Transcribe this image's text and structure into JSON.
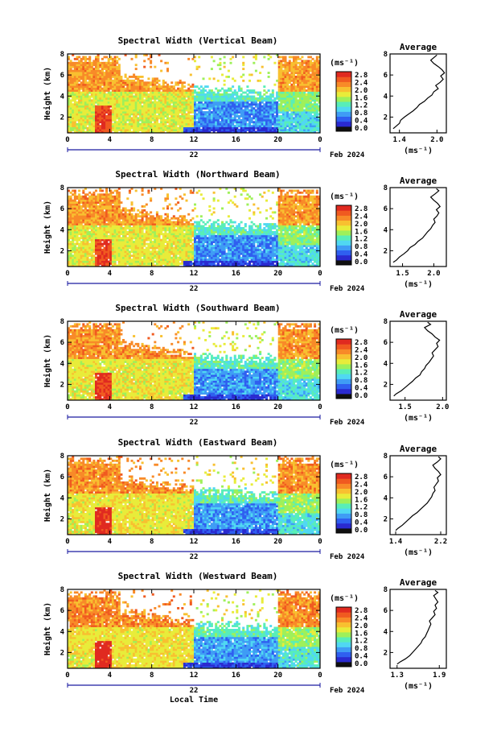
{
  "x_axis_label": "Local Time",
  "date_label": "Feb 2024",
  "day_label": "22",
  "colorbar_unit": "(ms⁻¹)",
  "colorbar_ticks": [
    "0.0",
    "0.4",
    "0.8",
    "1.2",
    "1.6",
    "2.0",
    "2.4",
    "2.8"
  ],
  "colorbar_colors": [
    "#101010",
    "#2a2ad0",
    "#2f5ff0",
    "#3f9cf5",
    "#50d8f2",
    "#58eeb8",
    "#9ef05a",
    "#e8ec3a",
    "#f8c030",
    "#f88a28",
    "#f05a20",
    "#e02a20"
  ],
  "chart_data": [
    {
      "type": "heatmap",
      "title": "Spectral Width (Vertical Beam)",
      "xlabel": "",
      "ylabel": "Height (km)",
      "x_ticks": [
        "0",
        "4",
        "8",
        "12",
        "16",
        "20",
        "0"
      ],
      "y_ticks": [
        "2",
        "4",
        "6",
        "8"
      ],
      "xlim": [
        0,
        24
      ],
      "ylim": [
        0.5,
        8.0
      ],
      "colorbar_range": [
        0.0,
        2.8
      ],
      "description_levels": {
        "low_altitude_evening": "0.4-1.0",
        "upper_layer": "2.0-2.8"
      },
      "profile": {
        "title": "Average",
        "x_ticks": [
          "1.4",
          "2.0"
        ],
        "xlim": [
          1.25,
          2.15
        ],
        "xlabel": "(ms⁻¹)",
        "y_ticks": [
          "2",
          "4",
          "6",
          "8"
        ],
        "ylim": [
          0.5,
          8.0
        ],
        "x": [
          1.3,
          1.34,
          1.4,
          1.42,
          1.48,
          1.55,
          1.62,
          1.68,
          1.72,
          1.8,
          1.85,
          1.92,
          1.95,
          2.02,
          1.98,
          2.05,
          2.1,
          2.06,
          2.12,
          2.08,
          2.02,
          1.95,
          1.9,
          1.96,
          2.0
        ],
        "y": [
          0.9,
          1.1,
          1.4,
          1.7,
          2.0,
          2.3,
          2.6,
          2.9,
          3.2,
          3.5,
          3.8,
          4.1,
          4.4,
          4.7,
          5.0,
          5.3,
          5.6,
          5.9,
          6.2,
          6.5,
          6.8,
          7.1,
          7.4,
          7.7,
          7.9
        ]
      }
    },
    {
      "type": "heatmap",
      "title": "Spectral Width (Northward Beam)",
      "xlabel": "",
      "ylabel": "Height (km)",
      "x_ticks": [
        "0",
        "4",
        "8",
        "12",
        "16",
        "20",
        "0"
      ],
      "y_ticks": [
        "2",
        "4",
        "6",
        "8"
      ],
      "xlim": [
        0,
        24
      ],
      "ylim": [
        0.5,
        8.0
      ],
      "colorbar_range": [
        0.0,
        2.8
      ],
      "profile": {
        "title": "Average",
        "x_ticks": [
          "1.5",
          "2.0"
        ],
        "xlim": [
          1.3,
          2.2
        ],
        "xlabel": "(ms⁻¹)",
        "y_ticks": [
          "2",
          "4",
          "6",
          "8"
        ],
        "ylim": [
          0.5,
          8.0
        ],
        "x": [
          1.35,
          1.4,
          1.45,
          1.52,
          1.58,
          1.62,
          1.7,
          1.75,
          1.82,
          1.86,
          1.9,
          1.95,
          1.98,
          2.02,
          2.0,
          2.05,
          2.08,
          2.04,
          2.1,
          2.06,
          2.0,
          1.95,
          2.02,
          2.08,
          2.04
        ],
        "y": [
          0.9,
          1.1,
          1.4,
          1.7,
          2.0,
          2.3,
          2.6,
          2.9,
          3.2,
          3.5,
          3.8,
          4.1,
          4.4,
          4.7,
          5.0,
          5.3,
          5.6,
          5.9,
          6.2,
          6.5,
          6.8,
          7.1,
          7.4,
          7.7,
          7.9
        ]
      }
    },
    {
      "type": "heatmap",
      "title": "Spectral Width (Southward Beam)",
      "xlabel": "",
      "ylabel": "Height (km)",
      "x_ticks": [
        "0",
        "4",
        "8",
        "12",
        "16",
        "20",
        "0"
      ],
      "y_ticks": [
        "2",
        "4",
        "6",
        "8"
      ],
      "xlim": [
        0,
        24
      ],
      "ylim": [
        0.5,
        8.0
      ],
      "colorbar_range": [
        0.0,
        2.8
      ],
      "profile": {
        "title": "Average",
        "x_ticks": [
          "1.5",
          "2.0"
        ],
        "xlim": [
          1.3,
          2.05
        ],
        "xlabel": "(ms⁻¹)",
        "y_ticks": [
          "2",
          "4",
          "6",
          "8"
        ],
        "ylim": [
          0.5,
          8.0
        ],
        "x": [
          1.35,
          1.38,
          1.45,
          1.5,
          1.55,
          1.6,
          1.64,
          1.7,
          1.72,
          1.76,
          1.78,
          1.82,
          1.85,
          1.88,
          1.86,
          1.9,
          1.94,
          1.92,
          1.96,
          1.9,
          1.86,
          1.8,
          1.76,
          1.84,
          1.8
        ],
        "y": [
          0.9,
          1.1,
          1.4,
          1.7,
          2.0,
          2.3,
          2.6,
          2.9,
          3.2,
          3.5,
          3.8,
          4.1,
          4.4,
          4.7,
          5.0,
          5.3,
          5.6,
          5.9,
          6.2,
          6.5,
          6.8,
          7.1,
          7.4,
          7.7,
          7.9
        ]
      }
    },
    {
      "type": "heatmap",
      "title": "Spectral Width (Eastward Beam)",
      "xlabel": "",
      "ylabel": "Height (km)",
      "x_ticks": [
        "0",
        "4",
        "8",
        "12",
        "16",
        "20",
        "0"
      ],
      "y_ticks": [
        "2",
        "4",
        "6",
        "8"
      ],
      "xlim": [
        0,
        24
      ],
      "ylim": [
        0.5,
        8.0
      ],
      "colorbar_range": [
        0.0,
        2.8
      ],
      "profile": {
        "title": "Average",
        "x_ticks": [
          "1.4",
          "2.2"
        ],
        "xlim": [
          1.3,
          2.3
        ],
        "xlabel": "(ms⁻¹)",
        "y_ticks": [
          "2",
          "4",
          "6",
          "8"
        ],
        "ylim": [
          0.5,
          8.0
        ],
        "x": [
          1.4,
          1.44,
          1.52,
          1.58,
          1.64,
          1.7,
          1.78,
          1.84,
          1.9,
          1.96,
          2.0,
          2.04,
          2.06,
          2.1,
          2.08,
          2.12,
          2.16,
          2.14,
          2.2,
          2.16,
          2.1,
          2.06,
          2.14,
          2.2,
          2.16
        ],
        "y": [
          0.9,
          1.1,
          1.4,
          1.7,
          2.0,
          2.3,
          2.6,
          2.9,
          3.2,
          3.5,
          3.8,
          4.1,
          4.4,
          4.7,
          5.0,
          5.3,
          5.6,
          5.9,
          6.2,
          6.5,
          6.8,
          7.1,
          7.4,
          7.7,
          7.9
        ]
      }
    },
    {
      "type": "heatmap",
      "title": "Spectral Width (Westward Beam)",
      "xlabel": "Local Time",
      "ylabel": "Height (km)",
      "x_ticks": [
        "0",
        "4",
        "8",
        "12",
        "16",
        "20",
        "0"
      ],
      "y_ticks": [
        "2",
        "4",
        "6",
        "8"
      ],
      "xlim": [
        0,
        24
      ],
      "ylim": [
        0.5,
        8.0
      ],
      "colorbar_range": [
        0.0,
        2.8
      ],
      "profile": {
        "title": "Average",
        "x_ticks": [
          "1.3",
          "1.9"
        ],
        "xlim": [
          1.2,
          2.0
        ],
        "xlabel": "(ms⁻¹)",
        "y_ticks": [
          "2",
          "4",
          "6",
          "8"
        ],
        "ylim": [
          0.5,
          8.0
        ],
        "x": [
          1.3,
          1.34,
          1.42,
          1.48,
          1.52,
          1.56,
          1.6,
          1.64,
          1.66,
          1.7,
          1.72,
          1.74,
          1.76,
          1.78,
          1.76,
          1.8,
          1.84,
          1.82,
          1.86,
          1.84,
          1.88,
          1.85,
          1.82,
          1.88,
          1.84
        ],
        "y": [
          0.9,
          1.1,
          1.4,
          1.7,
          2.0,
          2.3,
          2.6,
          2.9,
          3.2,
          3.5,
          3.8,
          4.1,
          4.4,
          4.7,
          5.0,
          5.3,
          5.6,
          5.9,
          6.2,
          6.5,
          6.8,
          7.1,
          7.4,
          7.7,
          7.9
        ]
      }
    }
  ]
}
